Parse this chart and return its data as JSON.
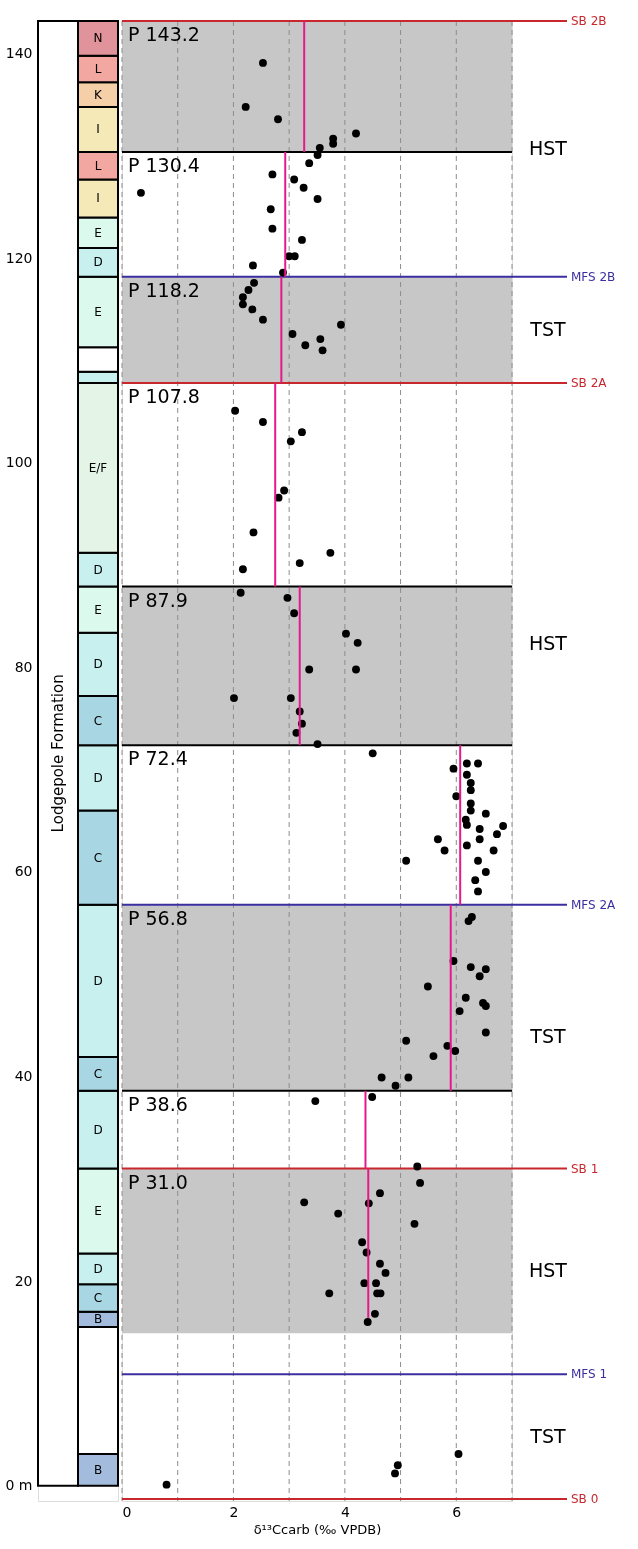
{
  "chart_data": [
    {
      "type": "bar",
      "stacked": true,
      "categories": [
        null,
        null
      ],
      "ylim": [
        -1.5,
        143.2
      ],
      "yticks": [
        {
          "value": 0,
          "label": "0 m"
        },
        20,
        40,
        60,
        80,
        100,
        120,
        140
      ],
      "tick_labels": "y",
      "series": [
        {
          "color": "#ffffff",
          "values": [
            143.2,
            null
          ],
          "value_labels": [
            "Lodgepole Formation",
            null
          ]
        },
        {
          "color": "#a3bcdd",
          "values": [
            null,
            3.1
          ],
          "value_labels": [
            null,
            "B"
          ]
        },
        {
          "color": "#ffffff",
          "values": [
            null,
            12.4
          ],
          "value_labels": [
            null,
            null
          ]
        },
        {
          "color": "#a3bcdd",
          "values": [
            null,
            1.5
          ],
          "value_labels": [
            null,
            "B"
          ]
        },
        {
          "color": "#a9d6e3",
          "values": [
            null,
            2.7
          ],
          "value_labels": [
            null,
            "C"
          ]
        },
        {
          "color": "#c7f0ef",
          "values": [
            null,
            3.0
          ],
          "value_labels": [
            null,
            "D"
          ]
        },
        {
          "color": "#dcf9ee",
          "values": [
            null,
            8.3
          ],
          "value_labels": [
            null,
            "E"
          ]
        },
        {
          "color": "#c7f0ef",
          "values": [
            null,
            7.6
          ],
          "value_labels": [
            null,
            "D"
          ]
        },
        {
          "color": "#a9d6e3",
          "values": [
            null,
            3.3
          ],
          "value_labels": [
            null,
            "C"
          ]
        },
        {
          "color": "#c7f0ef",
          "values": [
            null,
            14.9
          ],
          "value_labels": [
            null,
            "D"
          ]
        },
        {
          "color": "#a9d6e3",
          "values": [
            null,
            9.2
          ],
          "value_labels": [
            null,
            "C"
          ]
        },
        {
          "color": "#c7f0ef",
          "values": [
            null,
            6.4
          ],
          "value_labels": [
            null,
            "D"
          ]
        },
        {
          "color": "#a9d6e3",
          "values": [
            null,
            4.8
          ],
          "value_labels": [
            null,
            "C"
          ]
        },
        {
          "color": "#c7f0ef",
          "values": [
            null,
            6.2
          ],
          "value_labels": [
            null,
            "D"
          ]
        },
        {
          "color": "#dcf9ee",
          "values": [
            null,
            4.5
          ],
          "value_labels": [
            null,
            "E"
          ]
        },
        {
          "color": "#c7f0ef",
          "values": [
            null,
            3.3
          ],
          "value_labels": [
            null,
            "D"
          ]
        },
        {
          "color": "#e4f4e6",
          "values": [
            null,
            16.6
          ],
          "value_labels": [
            null,
            "E/F"
          ]
        },
        {
          "color": "#c7f0ef",
          "values": [
            null,
            1.1
          ],
          "value_labels": [
            null,
            null
          ]
        },
        {
          "color": "#ffffff",
          "values": [
            null,
            2.4
          ],
          "value_labels": [
            null,
            null
          ]
        },
        {
          "color": "#dcf9ee",
          "values": [
            null,
            6.9
          ],
          "value_labels": [
            null,
            "E"
          ]
        },
        {
          "color": "#c7f0ef",
          "values": [
            null,
            2.8
          ],
          "value_labels": [
            null,
            "D"
          ]
        },
        {
          "color": "#dcf9ee",
          "values": [
            null,
            3.0
          ],
          "value_labels": [
            null,
            "E"
          ]
        },
        {
          "color": "#f5e9b8",
          "values": [
            null,
            3.7
          ],
          "value_labels": [
            null,
            "I"
          ]
        },
        {
          "color": "#f2a8a0",
          "values": [
            null,
            2.7
          ],
          "value_labels": [
            null,
            "L"
          ]
        },
        {
          "color": "#f5e9b8",
          "values": [
            null,
            4.4
          ],
          "value_labels": [
            null,
            "I"
          ]
        },
        {
          "color": "#f5cfa8",
          "values": [
            null,
            2.4
          ],
          "value_labels": [
            null,
            "K"
          ]
        },
        {
          "color": "#f2a8a0",
          "values": [
            null,
            2.6
          ],
          "value_labels": [
            null,
            "L"
          ]
        },
        {
          "color": "#e0939b",
          "values": [
            null,
            3.4
          ],
          "value_labels": [
            null,
            "N"
          ]
        }
      ]
    },
    {
      "type": "scatter",
      "xlabel": "δ¹³Ccarb (‰ VPDB)",
      "xlim": [
        0,
        7
      ],
      "ylim": [
        -1.5,
        143.2
      ],
      "xticks": [
        0,
        {
          "value": 1,
          "label": null
        },
        2,
        {
          "value": 3,
          "label": null
        },
        4,
        {
          "value": 5,
          "label": null
        },
        6,
        {
          "value": 7,
          "label": null
        }
      ],
      "yticks": [
        0,
        20,
        40,
        60,
        80,
        100,
        120,
        140
      ],
      "tick_labels": "x",
      "grid": "x",
      "marker": "circle",
      "bands": [
        {
          "axis": "y",
          "from": 130.4,
          "to": 143.2,
          "color": "#c6c7c6"
        },
        {
          "axis": "y",
          "from": 107.8,
          "to": 118.2,
          "color": "#c6c7c6"
        },
        {
          "axis": "y",
          "from": 72.4,
          "to": 87.9,
          "color": "#c6c7c6"
        },
        {
          "axis": "y",
          "from": 38.6,
          "to": 56.8,
          "color": "#c6c7c6"
        },
        {
          "axis": "y",
          "from": 14.9,
          "to": 31.0,
          "color": "#c6c7c6"
        }
      ],
      "ref_lines": [
        {
          "axis": "y",
          "value": 130.4,
          "label": null,
          "color": "#000000"
        },
        {
          "axis": "y",
          "value": 87.9,
          "label": null,
          "color": "#000000"
        },
        {
          "axis": "y",
          "value": 72.4,
          "label": null,
          "color": "#000000"
        },
        {
          "axis": "y",
          "value": 38.6,
          "label": null,
          "color": "#000000"
        },
        {
          "axis": "y",
          "value": 143.2,
          "label": "SB 2B",
          "color": "#c8272e"
        },
        {
          "axis": "y",
          "value": 118.2,
          "label": "MFS 2B",
          "color": "#3b2fa0"
        },
        {
          "axis": "y",
          "value": 107.8,
          "label": "SB 2A",
          "color": "#c8272e"
        },
        {
          "axis": "y",
          "value": 56.8,
          "label": "MFS 2A",
          "color": "#3b2fa0"
        },
        {
          "axis": "y",
          "value": 31.0,
          "label": "SB 1",
          "color": "#c8272e"
        },
        {
          "axis": "y",
          "value": 10.9,
          "label": "MFS 1",
          "color": "#3b2fa0"
        },
        {
          "axis": "y",
          "value": -1.3,
          "label": "SB 0",
          "color": "#c8272e"
        }
      ],
      "annotations": [
        {
          "text": "P 143.2",
          "y": 143.2
        },
        {
          "text": "P 130.4",
          "y": 130.4
        },
        {
          "text": "P 118.2",
          "y": 118.2
        },
        {
          "text": "P 107.8",
          "y": 107.8
        },
        {
          "text": "P 87.9",
          "y": 87.9
        },
        {
          "text": "P 72.4",
          "y": 72.4
        },
        {
          "text": "P 56.8",
          "y": 56.8
        },
        {
          "text": "P 38.6",
          "y": 38.6
        },
        {
          "text": "P 31.0",
          "y": 31.0
        },
        "HST",
        "TST",
        "HST",
        "TST",
        "HST",
        "TST"
      ],
      "series": [
        {
          "type": "scatter",
          "color": "#000000",
          "x": [
            2.53,
            2.22,
            2.8,
            4.2,
            3.79,
            3.79,
            3.55,
            3.51,
            3.36,
            2.7,
            3.09,
            0.34,
            3.26,
            3.51,
            2.67,
            2.7,
            3.23,
            3.0,
            3.1,
            2.35,
            2.89,
            2.37,
            2.27,
            2.17,
            2.17,
            2.34,
            2.53,
            3.93,
            3.06,
            3.56,
            3.29,
            3.6,
            2.03,
            2.53,
            3.23,
            3.03,
            2.91,
            2.81,
            2.36,
            3.74,
            3.19,
            2.17,
            2.13,
            2.97,
            3.09,
            4.02,
            4.23,
            3.36,
            4.2,
            2.01,
            3.03,
            3.19,
            3.23,
            3.13,
            3.51,
            4.5,
            6.19,
            6.39,
            5.95,
            6.19,
            6.26,
            6.0,
            6.26,
            6.26,
            6.26,
            6.53,
            6.17,
            6.19,
            6.42,
            6.84,
            6.73,
            5.67,
            6.42,
            6.19,
            5.79,
            6.67,
            5.1,
            6.39,
            6.53,
            6.34,
            6.39,
            6.28,
            6.22,
            5.95,
            6.26,
            6.53,
            6.42,
            5.49,
            6.17,
            6.48,
            6.53,
            6.06,
            6.53,
            5.1,
            5.84,
            5.98,
            5.59,
            4.66,
            5.14,
            4.91,
            4.49,
            3.47,
            5.3,
            5.35,
            4.63,
            3.27,
            4.43,
            3.88,
            5.25,
            4.31,
            4.39,
            4.63,
            4.73,
            4.35,
            4.56,
            3.72,
            4.58,
            4.64,
            4.54,
            4.41,
            6.04,
            4.95,
            4.9,
            0.8
          ],
          "values": [
            139.1,
            134.8,
            133.6,
            132.2,
            131.7,
            131.2,
            130.8,
            130.1,
            129.3,
            128.2,
            127.7,
            126.4,
            126.9,
            125.8,
            124.8,
            122.9,
            121.8,
            120.2,
            120.2,
            119.3,
            118.6,
            117.6,
            116.9,
            116.2,
            115.5,
            115.0,
            114.0,
            113.5,
            112.6,
            112.1,
            111.5,
            111.0,
            105.1,
            104.0,
            103.0,
            102.1,
            97.3,
            96.6,
            93.2,
            91.2,
            90.2,
            89.6,
            87.3,
            86.8,
            85.3,
            83.3,
            82.4,
            79.8,
            79.8,
            77.0,
            77.0,
            75.7,
            74.5,
            73.6,
            72.5,
            71.6,
            70.6,
            70.6,
            70.1,
            69.5,
            68.7,
            67.4,
            68.0,
            66.7,
            66.0,
            65.7,
            65.1,
            64.6,
            64.2,
            64.5,
            63.7,
            63.2,
            63.2,
            62.6,
            62.1,
            62.1,
            61.1,
            61.1,
            60.0,
            59.2,
            58.1,
            55.6,
            55.2,
            51.3,
            50.7,
            50.5,
            49.8,
            48.8,
            47.7,
            47.2,
            46.9,
            46.4,
            44.3,
            43.5,
            43.0,
            42.5,
            42.0,
            39.9,
            39.9,
            39.1,
            38.0,
            37.6,
            31.2,
            29.6,
            28.6,
            27.7,
            27.6,
            26.6,
            25.6,
            23.8,
            22.8,
            21.7,
            20.8,
            19.8,
            19.8,
            18.8,
            18.8,
            18.8,
            16.8,
            16.0,
            3.1,
            2.0,
            1.2,
            0.1
          ]
        },
        {
          "type": "line",
          "color": "#e6198c",
          "marker": "none",
          "line_style": "solid",
          "x": [
            3.27,
            3.27
          ],
          "values": [
            130.4,
            143.2
          ]
        },
        {
          "type": "line",
          "color": "#e6198c",
          "marker": "none",
          "line_style": "solid",
          "x": [
            2.93,
            2.93
          ],
          "values": [
            118.2,
            130.4
          ]
        },
        {
          "type": "line",
          "color": "#e6198c",
          "marker": "none",
          "line_style": "solid",
          "x": [
            2.86,
            2.86
          ],
          "values": [
            107.8,
            118.2
          ]
        },
        {
          "type": "line",
          "color": "#e6198c",
          "marker": "none",
          "line_style": "solid",
          "x": [
            2.75,
            2.75
          ],
          "values": [
            87.9,
            107.8
          ]
        },
        {
          "type": "line",
          "color": "#e6198c",
          "marker": "none",
          "line_style": "solid",
          "x": [
            3.19,
            3.19
          ],
          "values": [
            72.4,
            87.9
          ]
        },
        {
          "type": "line",
          "color": "#e6198c",
          "marker": "none",
          "line_style": "solid",
          "x": [
            6.07,
            6.07
          ],
          "values": [
            56.8,
            72.4
          ]
        },
        {
          "type": "line",
          "color": "#e6198c",
          "marker": "none",
          "line_style": "solid",
          "x": [
            5.9,
            5.9
          ],
          "values": [
            38.6,
            56.8
          ]
        },
        {
          "type": "line",
          "color": "#e6198c",
          "marker": "none",
          "line_style": "solid",
          "x": [
            4.37,
            4.37
          ],
          "values": [
            31.0,
            38.6
          ]
        },
        {
          "type": "line",
          "color": "#e6198c",
          "marker": "none",
          "line_style": "solid",
          "x": [
            4.42,
            4.42
          ],
          "values": [
            16.4,
            31.0
          ]
        }
      ]
    }
  ]
}
